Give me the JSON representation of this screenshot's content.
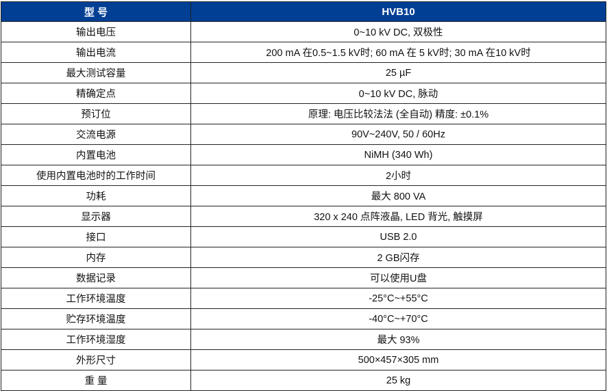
{
  "header": {
    "label": "型 号",
    "value": "HVB10"
  },
  "header_color": "#003f94",
  "rows": [
    {
      "label": "输出电压",
      "value": "0~10 kV DC, 双极性"
    },
    {
      "label": "输出电流",
      "value": "200 mA 在0.5~1.5 kV时; 60 mA 在 5 kV时; 30 mA 在10 kV时"
    },
    {
      "label": "最大测试容量",
      "value": "25 µF"
    },
    {
      "label": "精确定点",
      "value": "0~10 kV DC, 脉动"
    },
    {
      "label": "预订位",
      "value": "原理: 电压比较法法 (全自动) 精度: ±0.1%"
    },
    {
      "label": "交流电源",
      "value": "90V~240V, 50 / 60Hz"
    },
    {
      "label": "内置电池",
      "value": "NiMH (340 Wh)"
    },
    {
      "label": "使用内置电池时的工作时间",
      "value": "2小时"
    },
    {
      "label": "功耗",
      "value": "最大 800 VA"
    },
    {
      "label": "显示器",
      "value": "320 x 240 点阵液晶, LED 背光, 触摸屏"
    },
    {
      "label": "接口",
      "value": "USB 2.0"
    },
    {
      "label": "内存",
      "value": "2 GB闪存"
    },
    {
      "label": "数据记录",
      "value": "可以使用U盘"
    },
    {
      "label": "工作环境温度",
      "value": "-25°C~+55°C"
    },
    {
      "label": "贮存环境温度",
      "value": "-40°C~+70°C"
    },
    {
      "label": "工作环境湿度",
      "value": "最大 93%"
    },
    {
      "label": "外形尺寸",
      "value": "500×457×305 mm"
    },
    {
      "label": "重 量",
      "value": "25 kg"
    }
  ]
}
